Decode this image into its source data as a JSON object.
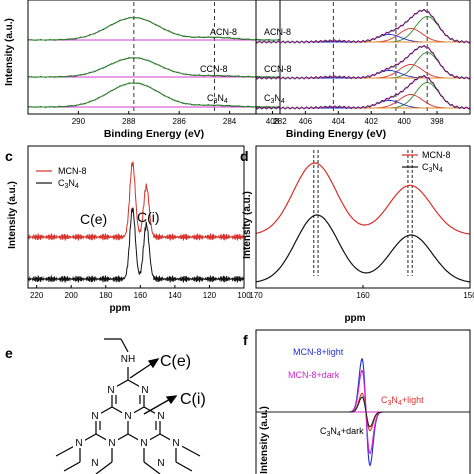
{
  "chart_data": [
    {
      "panel": "a",
      "type": "line",
      "xlabel": "Binding Energy (eV)",
      "ylabel": "Intensity (a.u.)",
      "xlim": [
        292,
        282
      ],
      "xticks": [
        290,
        288,
        286,
        284,
        282
      ],
      "reference_lines": [
        287.8,
        284.6
      ],
      "series": [
        {
          "name": "ACN-8",
          "peak_position": 287.8,
          "peak_width": 1.0,
          "peak_height": 0.7,
          "side_peak_position": 284.6,
          "side_peak_height": 0.08
        },
        {
          "name": "CCN-8",
          "peak_position": 287.8,
          "peak_width": 1.0,
          "peak_height": 0.6,
          "side_peak_position": 284.6,
          "side_peak_height": 0.04
        },
        {
          "name": "C3N4",
          "peak_position": 287.8,
          "peak_width": 1.0,
          "peak_height": 0.75,
          "side_peak_position": 284.6,
          "side_peak_height": 0.05
        }
      ]
    },
    {
      "panel": "b",
      "type": "line",
      "xlabel": "Binding Energy (eV)",
      "xlim": [
        409,
        396
      ],
      "xticks": [
        408,
        406,
        404,
        402,
        400,
        398
      ],
      "reference_lines": [
        404.3,
        400.5,
        398.6
      ],
      "series": [
        {
          "name": "ACN-8",
          "components": [
            [
              398.6,
              0.85
            ],
            [
              399.6,
              0.45
            ],
            [
              400.9,
              0.25
            ],
            [
              404.3,
              0.04
            ]
          ]
        },
        {
          "name": "CCN-8",
          "components": [
            [
              398.6,
              0.85
            ],
            [
              399.6,
              0.45
            ],
            [
              400.9,
              0.25
            ],
            [
              404.3,
              0.04
            ]
          ]
        },
        {
          "name": "C3N4",
          "components": [
            [
              398.6,
              0.85
            ],
            [
              399.6,
              0.45
            ],
            [
              400.9,
              0.25
            ],
            [
              404.3,
              0.04
            ]
          ]
        }
      ]
    },
    {
      "panel": "c",
      "type": "line",
      "xlabel": "ppm",
      "ylabel": "Intensity (a.u.)",
      "xlim": [
        225,
        100
      ],
      "xticks": [
        220,
        200,
        180,
        160,
        140,
        120,
        100
      ],
      "annotations": [
        "C(e)",
        "C(i)"
      ],
      "series": [
        {
          "name": "MCN-8",
          "peaks": [
            [
              164.5,
              0.95
            ],
            [
              156.5,
              0.65
            ]
          ]
        },
        {
          "name": "C3N4",
          "peaks": [
            [
              164.5,
              0.9
            ],
            [
              156.5,
              0.7
            ]
          ]
        }
      ]
    },
    {
      "panel": "d",
      "type": "line",
      "xlabel": "ppm",
      "ylabel": "Intensity (a.u.)",
      "xlim": [
        170,
        150
      ],
      "xticks": [
        170,
        160,
        150
      ],
      "reference_lines": [
        164.6,
        164.2,
        155.8,
        155.4
      ],
      "series": [
        {
          "name": "MCN-8",
          "peaks": [
            [
              164.5,
              0.9
            ],
            [
              155.6,
              0.62
            ]
          ]
        },
        {
          "name": "C3N4",
          "peaks": [
            [
              164.3,
              0.85
            ],
            [
              155.5,
              0.6
            ]
          ]
        }
      ]
    },
    {
      "panel": "f",
      "type": "line",
      "ylabel": "Intensity (a.u.)",
      "series": [
        {
          "name": "MCN-8+light",
          "color": "#1f2fcf",
          "amplitude": 1.0
        },
        {
          "name": "MCN-8+dark",
          "color": "#d024d0",
          "amplitude": 0.78
        },
        {
          "name": "C3N4+light",
          "color": "#e03030",
          "amplitude": 0.35
        },
        {
          "name": "C3N4+dark",
          "color": "#222222",
          "amplitude": 0.28
        }
      ]
    }
  ],
  "panels": {
    "a": {
      "tag": "",
      "xlabel": "Binding Energy (eV)",
      "ylabel": "Intensity (a.u.)",
      "ticks": [
        "290",
        "288",
        "286",
        "284",
        "282"
      ],
      "labels": [
        "ACN-8",
        "CCN-8",
        "C3N4"
      ]
    },
    "b": {
      "tag": "",
      "xlabel": "Binding Energy (eV)",
      "ticks": [
        "408",
        "406",
        "404",
        "402",
        "400",
        "398"
      ],
      "labels": [
        "ACN-8",
        "CCN-8",
        "C3N4"
      ]
    },
    "c": {
      "tag": "c",
      "xlabel": "ppm",
      "ylabel": "Intensity (a.u.)",
      "ticks": [
        "220",
        "200",
        "180",
        "160",
        "140",
        "120",
        "100"
      ],
      "legend": [
        "MCN-8",
        "C3N4"
      ],
      "ce": "C(e)",
      "ci": "C(i)"
    },
    "d": {
      "tag": "d",
      "xlabel": "ppm",
      "ylabel": "Intensity (a.u.)",
      "ticks": [
        "170",
        "160",
        "150"
      ],
      "legend": [
        "MCN-8",
        "C3N4"
      ]
    },
    "e": {
      "tag": "e",
      "ce": "C(e)",
      "ci": "C(i)",
      "atom_n": "N",
      "atom_h": "H"
    },
    "f": {
      "tag": "f",
      "ylabel": "Intensity (a.u.)",
      "legend": [
        "MCN-8+light",
        "MCN-8+dark",
        "C3N4+light",
        "C3N4+dark"
      ]
    }
  },
  "colors": {
    "red": "#d9302a",
    "black": "#111111",
    "green": "#2e8b2e",
    "magenta": "#d63cd6",
    "blue": "#1f2fcf",
    "purple": "#7b2fbf",
    "orange": "#e08a2a"
  }
}
